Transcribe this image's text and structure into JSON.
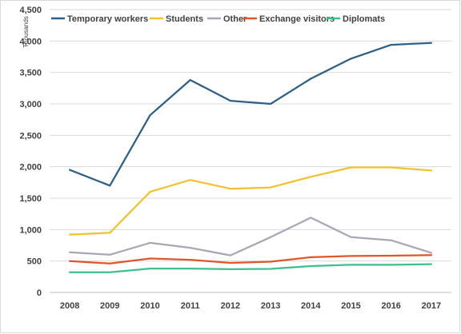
{
  "chart_data": {
    "type": "line",
    "title": "",
    "xlabel": "",
    "ylabel": "Thousands",
    "ylim": [
      0,
      4500
    ],
    "yticks": [
      0,
      500,
      1000,
      1500,
      2000,
      2500,
      3000,
      3500,
      4000,
      4500
    ],
    "ytick_labels": [
      "0",
      "500",
      "1,000",
      "1,500",
      "2,000",
      "2,500",
      "3,000",
      "3,500",
      "4,000",
      "4,500"
    ],
    "grid": true,
    "legend_position": "top",
    "categories": [
      "2008",
      "2009",
      "2010",
      "2011",
      "2012",
      "2013",
      "2014",
      "2015",
      "2016",
      "2017"
    ],
    "series": [
      {
        "name": "Temporary workers",
        "color": "#2e5f86",
        "values": [
          1950,
          1700,
          2820,
          3380,
          3050,
          3000,
          3400,
          3720,
          3940,
          3970
        ]
      },
      {
        "name": "Students",
        "color": "#f2c12e",
        "values": [
          920,
          950,
          1600,
          1790,
          1650,
          1670,
          1840,
          1990,
          1990,
          1940
        ]
      },
      {
        "name": "Other",
        "color": "#a9a6b5",
        "values": [
          640,
          600,
          790,
          710,
          590,
          880,
          1190,
          880,
          830,
          630
        ]
      },
      {
        "name": "Exchange visitors",
        "color": "#e0552a",
        "values": [
          500,
          460,
          540,
          520,
          470,
          490,
          560,
          580,
          585,
          595
        ]
      },
      {
        "name": "Diplomats",
        "color": "#3ebf8c",
        "values": [
          320,
          320,
          380,
          380,
          370,
          375,
          420,
          440,
          440,
          450
        ]
      }
    ]
  }
}
